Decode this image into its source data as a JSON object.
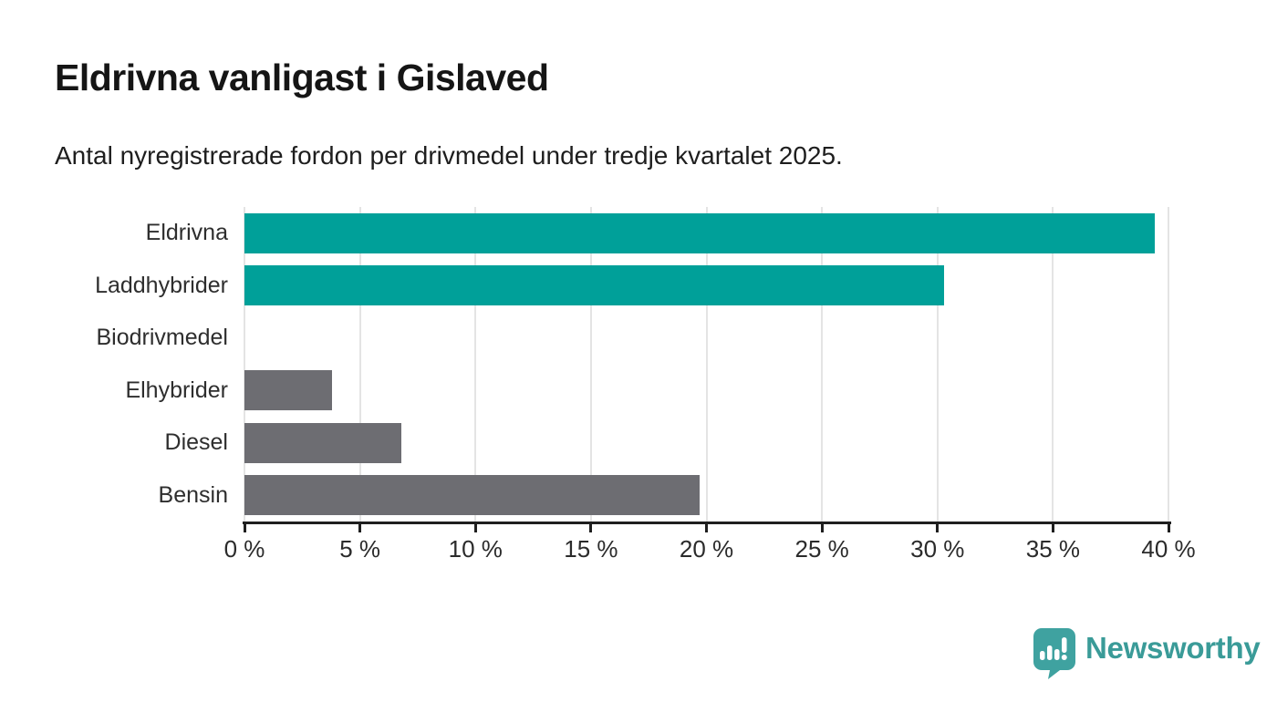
{
  "title": "Eldrivna vanligast i Gislaved",
  "subtitle": "Antal nyregistrerade fordon per drivmedel under tredje kvartalet 2025.",
  "branding": {
    "name": "Newsworthy",
    "icon": "newsworthy-logo-icon",
    "icon_color": "#3FA2A0",
    "text_color": "#3A9B98"
  },
  "chart_data": {
    "type": "bar",
    "orientation": "horizontal",
    "title": "Eldrivna vanligast i Gislaved",
    "subtitle": "Antal nyregistrerade fordon per drivmedel under tredje kvartalet 2025.",
    "categories": [
      "Eldrivna",
      "Laddhybrider",
      "Biodrivmedel",
      "Elhybrider",
      "Diesel",
      "Bensin"
    ],
    "values": [
      39.4,
      30.3,
      0,
      3.8,
      6.8,
      19.7
    ],
    "unit": "%",
    "bar_colors": [
      "#00A099",
      "#00A099",
      "#6D6D72",
      "#6D6D72",
      "#6D6D72",
      "#6D6D72"
    ],
    "highlight_color": "#00A099",
    "default_color": "#6D6D72",
    "xlabel": "",
    "ylabel": "",
    "xlim": [
      0,
      40
    ],
    "x_tick_step": 5,
    "x_tick_labels": [
      "0 %",
      "5 %",
      "10 %",
      "15 %",
      "20 %",
      "25 %",
      "30 %",
      "35 %",
      "40 %"
    ],
    "grid": true,
    "gridline_color": "#E4E4E4",
    "axis_color": "#1F1F1F",
    "label_color": "#2E2E2E",
    "legend": "none"
  }
}
